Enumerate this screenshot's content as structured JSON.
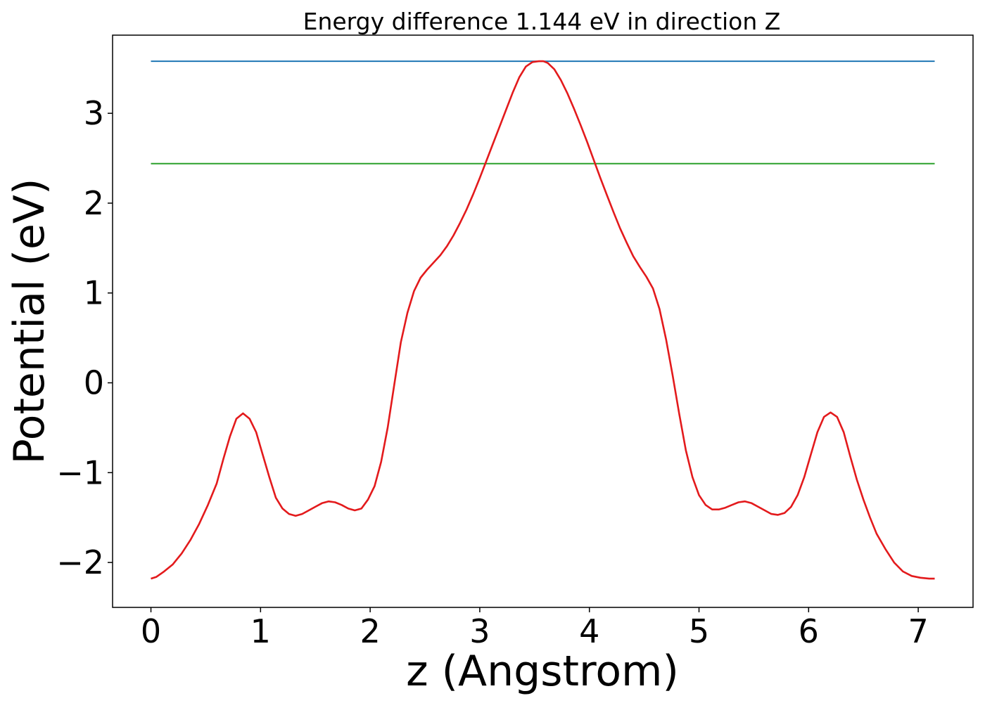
{
  "chart_data": {
    "type": "line",
    "title": "Energy difference 1.144 eV in direction Z",
    "xlabel": "z (Angstrom)",
    "ylabel": "Potential (eV)",
    "xlim": [
      -0.35,
      7.5
    ],
    "ylim": [
      -2.5,
      3.87
    ],
    "xticks": [
      0,
      1,
      2,
      3,
      4,
      5,
      6,
      7
    ],
    "xtick_labels": [
      "0",
      "1",
      "2",
      "3",
      "4",
      "5",
      "6",
      "7"
    ],
    "yticks": [
      -2,
      -1,
      0,
      1,
      2,
      3
    ],
    "ytick_labels": [
      "−2",
      "−1",
      "0",
      "1",
      "2",
      "3"
    ],
    "grid": false,
    "series": [
      {
        "color": "#1f77b4",
        "x": [
          0,
          7.15
        ],
        "y": [
          3.58,
          3.58
        ]
      },
      {
        "color": "#2ca02c",
        "x": [
          0,
          7.15
        ],
        "y": [
          2.44,
          2.44
        ]
      },
      {
        "color": "#e31a1c",
        "x": [
          0,
          0.05,
          0.12,
          0.2,
          0.28,
          0.36,
          0.44,
          0.52,
          0.6,
          0.66,
          0.72,
          0.78,
          0.84,
          0.9,
          0.96,
          1.02,
          1.08,
          1.14,
          1.2,
          1.26,
          1.32,
          1.38,
          1.44,
          1.5,
          1.56,
          1.62,
          1.68,
          1.74,
          1.8,
          1.86,
          1.92,
          1.98,
          2.04,
          2.1,
          2.16,
          2.22,
          2.28,
          2.34,
          2.4,
          2.46,
          2.52,
          2.58,
          2.64,
          2.7,
          2.76,
          2.82,
          2.88,
          2.94,
          3.0,
          3.06,
          3.12,
          3.18,
          3.24,
          3.3,
          3.36,
          3.42,
          3.48,
          3.54,
          3.58,
          3.62,
          3.68,
          3.74,
          3.8,
          3.86,
          3.92,
          3.98,
          4.04,
          4.1,
          4.16,
          4.22,
          4.28,
          4.34,
          4.4,
          4.46,
          4.52,
          4.58,
          4.64,
          4.7,
          4.76,
          4.82,
          4.88,
          4.94,
          5.0,
          5.06,
          5.12,
          5.18,
          5.24,
          5.3,
          5.36,
          5.42,
          5.48,
          5.54,
          5.6,
          5.66,
          5.72,
          5.78,
          5.84,
          5.9,
          5.96,
          6.02,
          6.08,
          6.14,
          6.2,
          6.26,
          6.32,
          6.38,
          6.44,
          6.5,
          6.56,
          6.62,
          6.7,
          6.78,
          6.86,
          6.94,
          7.02,
          7.1,
          7.15
        ],
        "y": [
          -2.18,
          -2.16,
          -2.1,
          -2.02,
          -1.9,
          -1.75,
          -1.57,
          -1.36,
          -1.12,
          -0.85,
          -0.6,
          -0.4,
          -0.34,
          -0.4,
          -0.55,
          -0.8,
          -1.05,
          -1.28,
          -1.4,
          -1.46,
          -1.48,
          -1.46,
          -1.42,
          -1.38,
          -1.34,
          -1.32,
          -1.33,
          -1.36,
          -1.4,
          -1.42,
          -1.4,
          -1.3,
          -1.15,
          -0.88,
          -0.5,
          -0.02,
          0.45,
          0.78,
          1.02,
          1.17,
          1.26,
          1.34,
          1.42,
          1.52,
          1.64,
          1.78,
          1.93,
          2.1,
          2.28,
          2.47,
          2.66,
          2.85,
          3.04,
          3.23,
          3.4,
          3.52,
          3.57,
          3.58,
          3.58,
          3.56,
          3.49,
          3.37,
          3.22,
          3.05,
          2.87,
          2.68,
          2.48,
          2.28,
          2.09,
          1.9,
          1.72,
          1.56,
          1.41,
          1.29,
          1.18,
          1.05,
          0.82,
          0.48,
          0.08,
          -0.35,
          -0.75,
          -1.05,
          -1.25,
          -1.36,
          -1.41,
          -1.41,
          -1.39,
          -1.36,
          -1.33,
          -1.32,
          -1.34,
          -1.38,
          -1.42,
          -1.46,
          -1.47,
          -1.45,
          -1.38,
          -1.25,
          -1.05,
          -0.8,
          -0.55,
          -0.38,
          -0.33,
          -0.38,
          -0.55,
          -0.82,
          -1.08,
          -1.3,
          -1.5,
          -1.68,
          -1.85,
          -2.0,
          -2.1,
          -2.15,
          -2.17,
          -2.18,
          -2.18
        ]
      }
    ]
  }
}
